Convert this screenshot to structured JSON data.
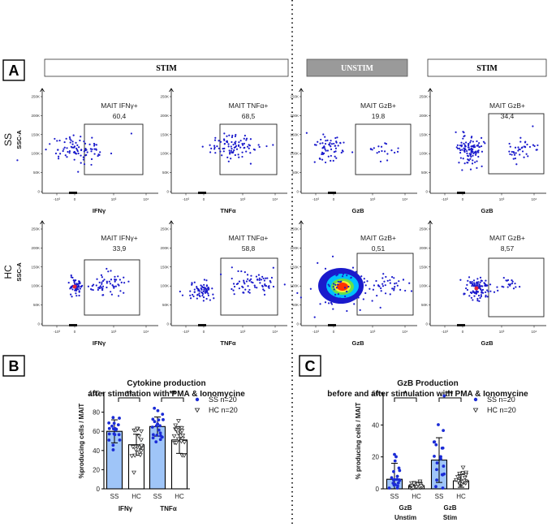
{
  "panels": {
    "a": "A",
    "b": "B",
    "c": "C"
  },
  "headers": {
    "stim_left": "STIM",
    "unstim": "UNSTIM",
    "stim_right": "STIM"
  },
  "row_labels": {
    "ss": "SS",
    "hc": "HC",
    "axis": "SSC-A"
  },
  "flow_plots": [
    {
      "id": "ss-ifng",
      "gate": "MAIT IFNγ+",
      "value": "60,4",
      "xlabel": "IFNγ"
    },
    {
      "id": "ss-tnfa",
      "gate": "MAIT TNFα+",
      "value": "68,5",
      "xlabel": "TNFα"
    },
    {
      "id": "ss-gzb-unstim",
      "gate": "MAIT GzB+",
      "value": "19.8",
      "xlabel": "GzB"
    },
    {
      "id": "ss-gzb-stim",
      "gate": "MAIT GzB+",
      "value": "34,4",
      "xlabel": "GzB"
    },
    {
      "id": "hc-ifng",
      "gate": "MAIT IFNγ+",
      "value": "33,9",
      "xlabel": "IFNγ"
    },
    {
      "id": "hc-tnfa",
      "gate": "MAIT TNFα+",
      "value": "58,8",
      "xlabel": "TNFα"
    },
    {
      "id": "hc-gzb-unstim",
      "gate": "MAIT GzB+",
      "value": "0,51",
      "xlabel": "GzB"
    },
    {
      "id": "hc-gzb-stim",
      "gate": "MAIT GzB+",
      "value": "8,57",
      "xlabel": "GzB"
    }
  ],
  "flow_ticks": {
    "y": [
      "250K",
      "200K",
      "150K",
      "100K",
      "50K",
      "0"
    ],
    "x": [
      "-10³",
      "0",
      "10³",
      "10⁴"
    ]
  },
  "chart_data": [
    {
      "type": "bar",
      "title": "Cytokine production",
      "subtitle": "after stimulation with PMA & Ionomycine",
      "ylabel": "%producing cells / MAIT",
      "ylim": [
        0,
        100
      ],
      "yticks": [
        "0",
        "20",
        "40",
        "60",
        "80",
        "100"
      ],
      "groups": [
        "IFNγ",
        "TNFα"
      ],
      "bar_labels": [
        "SS",
        "HC",
        "SS",
        "HC"
      ],
      "values": [
        60,
        46,
        65,
        51
      ],
      "errors": [
        12,
        11,
        10,
        14
      ],
      "significance": [
        "**",
        "**"
      ],
      "legend": [
        "SS n=20",
        "HC n=20"
      ]
    },
    {
      "type": "bar",
      "title": "GzB Production",
      "subtitle": "before and after stimulation with PMA & Ionomycine",
      "ylabel": "% producing cells / MAIT",
      "ylim": [
        0,
        60
      ],
      "yticks": [
        "0",
        "20",
        "40",
        "60"
      ],
      "groups": [
        "GzB Unstim",
        "GzB Stim"
      ],
      "group_lines": [
        [
          "GzB",
          "Unstim"
        ],
        [
          "GzB",
          "Stim"
        ]
      ],
      "bar_labels": [
        "SS",
        "HC",
        "SS",
        "HC"
      ],
      "values": [
        6,
        2,
        18,
        5
      ],
      "errors": [
        10,
        2,
        14,
        4
      ],
      "significance": [
        "*",
        "**"
      ],
      "legend": [
        "SS n=20",
        "HC n=20"
      ]
    }
  ],
  "colors": {
    "ss_bar": "#9fc5f8",
    "hc_bar": "#ffffff",
    "ss_dot": "#1a2bd6",
    "hc_dot": "#222222",
    "dot_blue": "#1a1acc",
    "unstim_header": "#9a9a9a"
  }
}
